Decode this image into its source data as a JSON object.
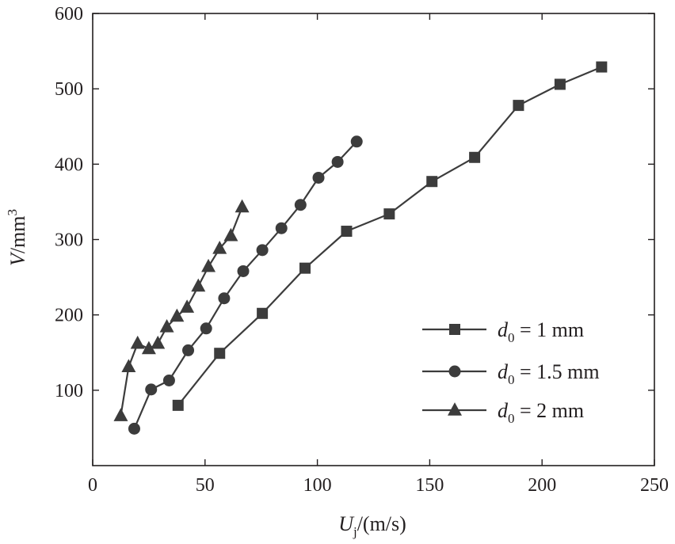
{
  "chart_data": {
    "type": "line",
    "xlabel": {
      "main": "U",
      "sub": "j",
      "rest": "/(m/s)"
    },
    "ylabel": {
      "main": "V",
      "rest": "/mm",
      "sup": "3"
    },
    "xlim": [
      0,
      250
    ],
    "ylim": [
      0,
      600
    ],
    "xticks": [
      0,
      50,
      100,
      150,
      200,
      250
    ],
    "yticks": [
      100,
      200,
      300,
      400,
      500,
      600
    ],
    "xtick_labels": [
      "0",
      "50",
      "100",
      "150",
      "200",
      "250"
    ],
    "ytick_labels": [
      "100",
      "200",
      "300",
      "400",
      "500",
      "600"
    ],
    "grid": false,
    "legend_position": "bottom-right",
    "line_color": "#3c3c3c",
    "series": [
      {
        "marker": "square",
        "label": {
          "var": "d",
          "sub": "0",
          "text": " = 1 mm"
        },
        "points": [
          [
            38,
            80
          ],
          [
            56.5,
            149
          ],
          [
            75.5,
            202
          ],
          [
            94.5,
            262
          ],
          [
            113,
            311
          ],
          [
            132,
            334
          ],
          [
            151,
            377
          ],
          [
            170,
            409
          ],
          [
            189.5,
            478
          ],
          [
            208,
            506
          ],
          [
            226.5,
            529
          ]
        ]
      },
      {
        "marker": "circle",
        "label": {
          "var": "d",
          "sub": "0",
          "text": " = 1.5 mm"
        },
        "points": [
          [
            18.5,
            49
          ],
          [
            26,
            101
          ],
          [
            34,
            113
          ],
          [
            42.5,
            153
          ],
          [
            50.5,
            182
          ],
          [
            58.5,
            222
          ],
          [
            67,
            258
          ],
          [
            75.5,
            286
          ],
          [
            84,
            315
          ],
          [
            92.5,
            346
          ],
          [
            100.5,
            382
          ],
          [
            109,
            403
          ],
          [
            117.5,
            430
          ]
        ]
      },
      {
        "marker": "triangle",
        "label": {
          "var": "d",
          "sub": "0",
          "text": " = 2 mm"
        },
        "points": [
          [
            12.5,
            66
          ],
          [
            16,
            131
          ],
          [
            20,
            162
          ],
          [
            25,
            155
          ],
          [
            29,
            162
          ],
          [
            33,
            184
          ],
          [
            37.5,
            198
          ],
          [
            42,
            210
          ],
          [
            47,
            238
          ],
          [
            51.5,
            264
          ],
          [
            56.5,
            288
          ],
          [
            61.5,
            305
          ],
          [
            66.5,
            343
          ]
        ]
      }
    ]
  }
}
